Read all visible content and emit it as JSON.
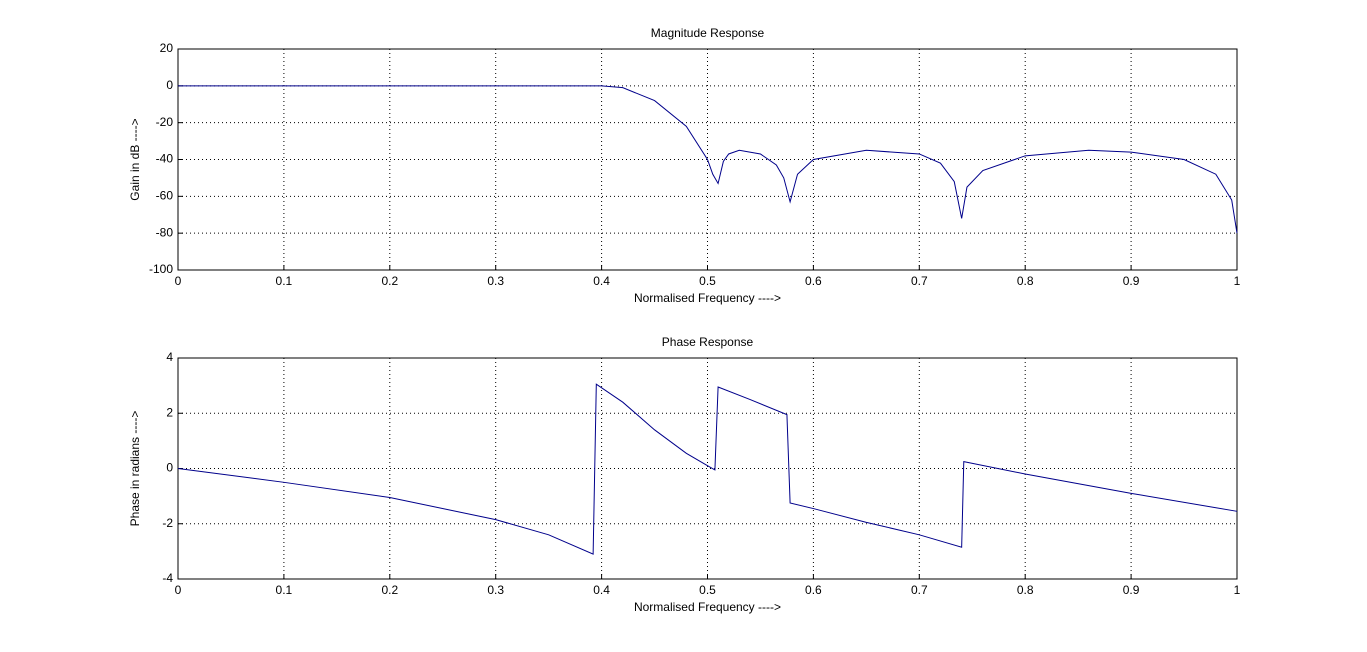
{
  "chart_data": [
    {
      "type": "line",
      "title": "Magnitude Response",
      "x_label": "Normalised Frequency ---->",
      "y_label": "Gain in dB ---->",
      "x": [
        0,
        0.1,
        0.2,
        0.3,
        0.4,
        0.42,
        0.45,
        0.48,
        0.5,
        0.505,
        0.51,
        0.515,
        0.52,
        0.53,
        0.55,
        0.565,
        0.572,
        0.578,
        0.585,
        0.6,
        0.65,
        0.7,
        0.72,
        0.733,
        0.74,
        0.745,
        0.76,
        0.8,
        0.86,
        0.9,
        0.95,
        0.98,
        0.995,
        1.0
      ],
      "series": [
        {
          "name": "Magnitude",
          "color": "#00008b",
          "values": [
            0,
            0,
            0,
            0,
            0,
            -1,
            -8,
            -22,
            -40,
            -48,
            -53,
            -41,
            -37,
            -35,
            -37,
            -43,
            -50,
            -63,
            -48,
            -40,
            -35,
            -37,
            -42,
            -52,
            -72,
            -55,
            -46,
            -38,
            -35,
            -36,
            -40,
            -48,
            -62,
            -80
          ]
        }
      ],
      "xlim": [
        0,
        1
      ],
      "ylim": [
        -100,
        20
      ],
      "xticks": [
        0,
        0.1,
        0.2,
        0.3,
        0.4,
        0.5,
        0.6,
        0.7,
        0.8,
        0.9,
        1
      ],
      "yticks": [
        -100,
        -80,
        -60,
        -40,
        -20,
        0,
        20
      ],
      "grid": true
    },
    {
      "type": "line",
      "title": "Phase Response",
      "x_label": "Normalised Frequency ---->",
      "y_label": "Phase in radians ---->",
      "x": [
        0,
        0.1,
        0.2,
        0.3,
        0.35,
        0.392,
        0.395,
        0.42,
        0.45,
        0.48,
        0.5,
        0.507,
        0.51,
        0.54,
        0.575,
        0.578,
        0.6,
        0.65,
        0.7,
        0.74,
        0.742,
        0.8,
        0.9,
        1.0
      ],
      "series": [
        {
          "name": "Phase",
          "color": "#00008b",
          "values": [
            0,
            -0.5,
            -1.05,
            -1.85,
            -2.4,
            -3.1,
            3.05,
            2.4,
            1.4,
            0.55,
            0.1,
            -0.05,
            2.95,
            2.5,
            1.95,
            -1.25,
            -1.45,
            -1.95,
            -2.4,
            -2.85,
            0.25,
            -0.2,
            -0.9,
            -1.55
          ]
        }
      ],
      "xlim": [
        0,
        1
      ],
      "ylim": [
        -4,
        4
      ],
      "xticks": [
        0,
        0.1,
        0.2,
        0.3,
        0.4,
        0.5,
        0.6,
        0.7,
        0.8,
        0.9,
        1
      ],
      "yticks": [
        -4,
        -2,
        0,
        2,
        4
      ],
      "grid": true
    }
  ]
}
